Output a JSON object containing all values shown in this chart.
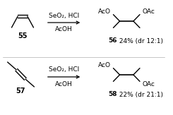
{
  "bg_color": "#ffffff",
  "rxn1_reagent": "SeO₂, HCl",
  "rxn1_below": "AcOH",
  "rxn1_reactant_label": "55",
  "rxn1_product_label_bold": "56",
  "rxn1_product_label_rest": " 24% (dr 12:1)",
  "rxn2_reagent": "SeO₂, HCl",
  "rxn2_below": "AcOH",
  "rxn2_reactant_label": "57",
  "rxn2_product_label_bold": "58",
  "rxn2_product_label_rest": " 22% (dr 21:1)",
  "aco_label": "AcO",
  "oac_label": "OAc",
  "line_color": "#000000",
  "text_color": "#000000",
  "font_size": 6.5,
  "label_font_size": 7.0
}
